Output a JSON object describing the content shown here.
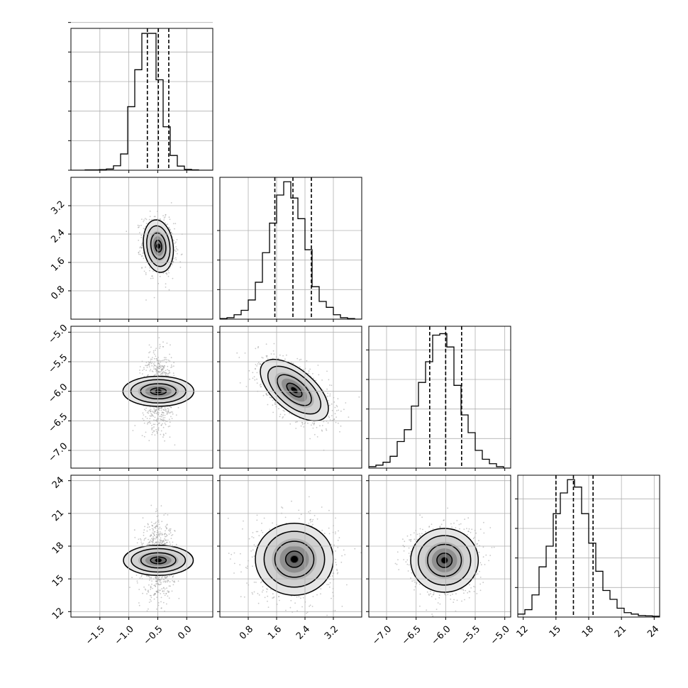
{
  "chart_data": {
    "type": "corner",
    "title": "",
    "n_params": 4,
    "grid": true,
    "params": [
      {
        "range": [
          -2.0,
          0.45
        ],
        "ticks": [
          -1.5,
          -1.0,
          -0.5,
          0.0
        ],
        "tick_labels": [
          "−1.5",
          "−1.0",
          "−0.5",
          "0.0"
        ],
        "quantiles": [
          -0.68,
          -0.49,
          -0.31
        ],
        "hist": {
          "edges_start": -2.0,
          "bin_width": 0.1225,
          "counts": [
            0,
            0,
            1,
            1,
            2,
            4,
            15,
            55,
            215,
            340,
            463,
            463,
            306,
            147,
            50,
            14,
            3,
            1,
            0,
            0
          ],
          "y_ticks": [
            0,
            100,
            200,
            300,
            400,
            500
          ],
          "ymax": 480
        }
      },
      {
        "range": [
          0.0,
          4.0
        ],
        "ticks": [
          0.8,
          1.6,
          2.4,
          3.2
        ],
        "tick_labels": [
          "0.8",
          "1.6",
          "2.4",
          "3.2"
        ],
        "quantiles": [
          1.55,
          2.06,
          2.58
        ],
        "hist": {
          "edges_start": 0.0,
          "bin_width": 0.2,
          "counts": [
            2,
            5,
            15,
            30,
            65,
            125,
            225,
            325,
            420,
            465,
            410,
            340,
            235,
            110,
            60,
            40,
            15,
            5,
            2,
            0
          ],
          "y_ticks": [
            100,
            200,
            300
          ],
          "ymax": 480
        }
      },
      {
        "range": [
          -7.3,
          -4.9
        ],
        "ticks": [
          -7.0,
          -6.5,
          -6.0,
          -5.5,
          -5.0
        ],
        "tick_labels": [
          "−7.0",
          "−6.5",
          "−6.0",
          "−5.5",
          "−5.0"
        ],
        "quantiles": [
          -6.27,
          -6.0,
          -5.73
        ],
        "hist": {
          "edges_start": -7.3,
          "bin_width": 0.12,
          "counts": [
            5,
            10,
            20,
            40,
            90,
            130,
            210,
            290,
            360,
            450,
            455,
            410,
            280,
            180,
            120,
            60,
            30,
            15,
            5,
            0
          ],
          "y_ticks": [
            100,
            200,
            300,
            400
          ],
          "ymax": 480
        }
      },
      {
        "range": [
          11.5,
          24.5
        ],
        "ticks": [
          12,
          15,
          18,
          21,
          24
        ],
        "tick_labels": [
          "12",
          "15",
          "18",
          "21",
          "24"
        ],
        "quantiles": [
          15.0,
          16.6,
          18.4
        ],
        "hist": {
          "edges_start": 11.5,
          "bin_width": 0.65,
          "counts": [
            10,
            25,
            75,
            170,
            240,
            350,
            420,
            465,
            440,
            350,
            250,
            155,
            90,
            60,
            30,
            15,
            10,
            5,
            4,
            3
          ],
          "y_ticks": [
            100,
            200,
            300,
            400
          ],
          "ymax": 480
        }
      }
    ],
    "pairs": [
      {
        "x": 0,
        "y": 1,
        "center": [
          -0.49,
          2.06
        ],
        "sd": [
          0.13,
          0.37
        ],
        "corr": -0.15,
        "n_points": 900
      },
      {
        "x": 0,
        "y": 2,
        "center": [
          -0.49,
          -6.0
        ],
        "sd": [
          0.13,
          0.3
        ],
        "corr": 0.0,
        "n_points": 900
      },
      {
        "x": 1,
        "y": 2,
        "center": [
          2.1,
          -5.98
        ],
        "sd": [
          0.48,
          0.26
        ],
        "corr": -0.6,
        "n_points": 1100
      },
      {
        "x": 0,
        "y": 3,
        "center": [
          -0.49,
          16.7
        ],
        "sd": [
          0.13,
          1.6
        ],
        "corr": 0.0,
        "n_points": 900
      },
      {
        "x": 1,
        "y": 3,
        "center": [
          2.1,
          16.8
        ],
        "sd": [
          0.55,
          1.65
        ],
        "corr": 0.0,
        "n_points": 1100
      },
      {
        "x": 2,
        "y": 3,
        "center": [
          -6.02,
          16.7
        ],
        "sd": [
          0.27,
          1.55
        ],
        "corr": 0.0,
        "n_points": 1100
      }
    ]
  }
}
